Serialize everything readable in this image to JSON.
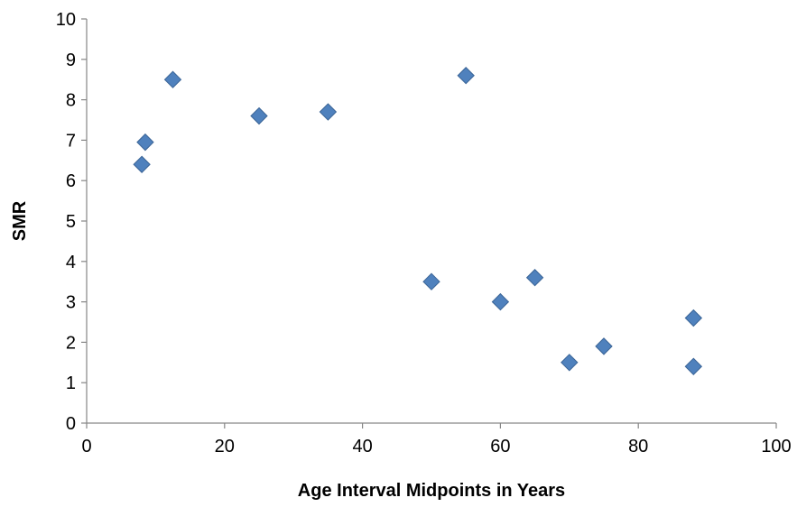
{
  "chart_data": {
    "type": "scatter",
    "title": "",
    "xlabel": "Age Interval Midpoints in Years",
    "ylabel": "SMR",
    "xlim": [
      0,
      100
    ],
    "ylim": [
      0,
      10
    ],
    "x_ticks": [
      0,
      20,
      40,
      60,
      80,
      100
    ],
    "y_ticks": [
      0,
      1,
      2,
      3,
      4,
      5,
      6,
      7,
      8,
      9,
      10
    ],
    "grid": false,
    "legend": "none",
    "marker": "diamond",
    "marker_color": "#4f81bd",
    "marker_edge_color": "#3a6496",
    "axis_color": "#868686",
    "series": [
      {
        "points": [
          {
            "x": 8,
            "y": 6.4
          },
          {
            "x": 8.5,
            "y": 6.95
          },
          {
            "x": 12.5,
            "y": 8.5
          },
          {
            "x": 25,
            "y": 7.6
          },
          {
            "x": 35,
            "y": 7.7
          },
          {
            "x": 50,
            "y": 3.5
          },
          {
            "x": 55,
            "y": 8.6
          },
          {
            "x": 60,
            "y": 3.0
          },
          {
            "x": 65,
            "y": 3.6
          },
          {
            "x": 70,
            "y": 1.5
          },
          {
            "x": 75,
            "y": 1.9
          },
          {
            "x": 88,
            "y": 2.6
          },
          {
            "x": 88,
            "y": 1.4
          }
        ]
      }
    ]
  }
}
